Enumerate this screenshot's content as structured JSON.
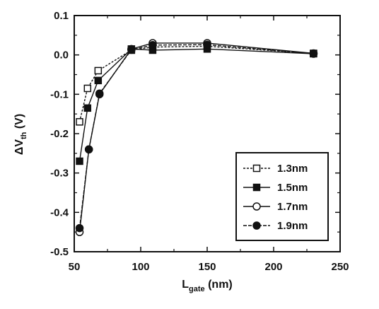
{
  "chart_data": {
    "type": "line",
    "xlabel": {
      "main": "L",
      "sub": "gate",
      "unit": " (nm)"
    },
    "ylabel": {
      "prefix": "ΔV",
      "sub": "th",
      "unit": " (V)"
    },
    "xlim": [
      50,
      250
    ],
    "ylim": [
      -0.5,
      0.1
    ],
    "xticks": [
      50,
      100,
      150,
      200,
      250
    ],
    "yticks": [
      0.1,
      0.0,
      -0.1,
      -0.2,
      -0.3,
      -0.4,
      -0.5
    ],
    "ytick_labels": [
      "0.1",
      "0.0",
      "-0.1",
      "-0.2",
      "-0.3",
      "-0.4",
      "-0.5"
    ],
    "grid": false,
    "legend_position": "bottom-right",
    "series": [
      {
        "name": "1.3nm",
        "marker": "open-square",
        "x": [
          54,
          60,
          68,
          93,
          109,
          150,
          230
        ],
        "y": [
          -0.17,
          -0.085,
          -0.04,
          0.012,
          0.02,
          0.022,
          0.004
        ]
      },
      {
        "name": "1.5nm",
        "marker": "filled-square",
        "x": [
          54,
          60,
          68,
          93,
          109,
          150,
          230
        ],
        "y": [
          -0.27,
          -0.135,
          -0.065,
          0.015,
          0.012,
          0.015,
          0.003
        ]
      },
      {
        "name": "1.7nm",
        "marker": "open-circle",
        "x": [
          54,
          61,
          69,
          93,
          109,
          150,
          230
        ],
        "y": [
          -0.45,
          -0.24,
          -0.1,
          0.015,
          0.03,
          0.03,
          0.004
        ]
      },
      {
        "name": "1.9nm",
        "marker": "filled-circle",
        "x": [
          54,
          61,
          69,
          93,
          109,
          150,
          230
        ],
        "y": [
          -0.44,
          -0.24,
          -0.098,
          0.013,
          0.025,
          0.026,
          0.003
        ]
      }
    ]
  }
}
